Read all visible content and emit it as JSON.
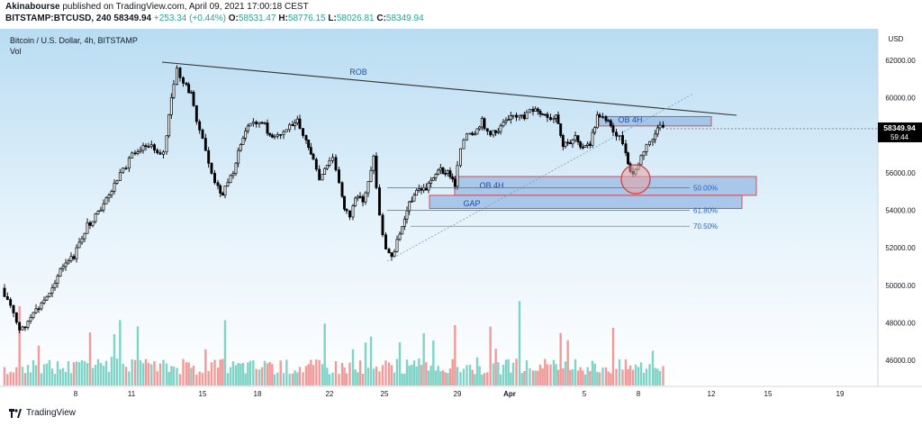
{
  "header": {
    "author": "Akinabourse",
    "published_text": "published on TradingView.com, April 09, 2021 17:00:18 CEST",
    "symbol": "BITSTAMP:BTCUSD, 240",
    "last": "58349.94",
    "change": "+253.34 (+0.44%)",
    "open_label": "O:",
    "open": "58531.47",
    "high_label": "H:",
    "high": "58776.15",
    "low_label": "L:",
    "low": "58026.81",
    "close_label": "C:",
    "close": "58349.94"
  },
  "legend": {
    "title": "Bitcoin / U.S. Dollar, 4h, BITSTAMP",
    "vol": "Vol"
  },
  "footer": {
    "brand": "TradingView",
    "logo_icon": "tradingview-logo-icon"
  },
  "colors": {
    "up": "#26a69a",
    "down": "#000000",
    "vol_up": "#7fd3c7",
    "vol_down": "#f19a99",
    "zone_fill": "#9fbfe6",
    "zone_stroke": "#c8535a",
    "bg_top": "#b9dcf2",
    "text_blue": "#1f4e9e"
  },
  "chart_data": {
    "type": "candlestick",
    "currency_label": "USD",
    "ylim": [
      44800,
      64000
    ],
    "y_ticks": [
      "62000.00",
      "60000.00",
      "58000.00",
      "56000.00",
      "54000.00",
      "52000.00",
      "50000.00",
      "48000.00",
      "46000.00"
    ],
    "x_ticks": [
      "8",
      "11",
      "15",
      "18",
      "22",
      "25",
      "29",
      "Apr",
      "5",
      "8",
      "12",
      "15",
      "19"
    ],
    "price_label": "58349.94",
    "countdown_label": "59:44",
    "annotations": {
      "trendline_label": "ROB",
      "ob_upper_label": "OB 4H",
      "ob_lower_label": "OB 4H",
      "gap_label": "GAP",
      "fib_50_label": "50.00%",
      "fib_618_label": "61.80%",
      "fib_705_label": "70.50%"
    },
    "key_points": [
      {
        "date": "Mar 13",
        "close": 61700,
        "note": "swing high"
      },
      {
        "date": "Mar 25",
        "close": 51000,
        "note": "swing low"
      },
      {
        "date": "Apr 2",
        "close": 59900
      },
      {
        "date": "Apr 8",
        "close": 55700,
        "note": "circled low"
      },
      {
        "date": "Apr 9",
        "close": 58349.94,
        "note": "last"
      }
    ],
    "zones": [
      {
        "label": "OB 4H",
        "from": 58500,
        "to": 59000
      },
      {
        "label": "OB 4H",
        "from": 54800,
        "to": 55800
      },
      {
        "label": "GAP",
        "from": 54100,
        "to": 54800
      }
    ],
    "fib_levels": [
      {
        "label": "50.00%",
        "price": 55200
      },
      {
        "label": "61.80%",
        "price": 54000
      },
      {
        "label": "70.50%",
        "price": 53150
      }
    ]
  }
}
